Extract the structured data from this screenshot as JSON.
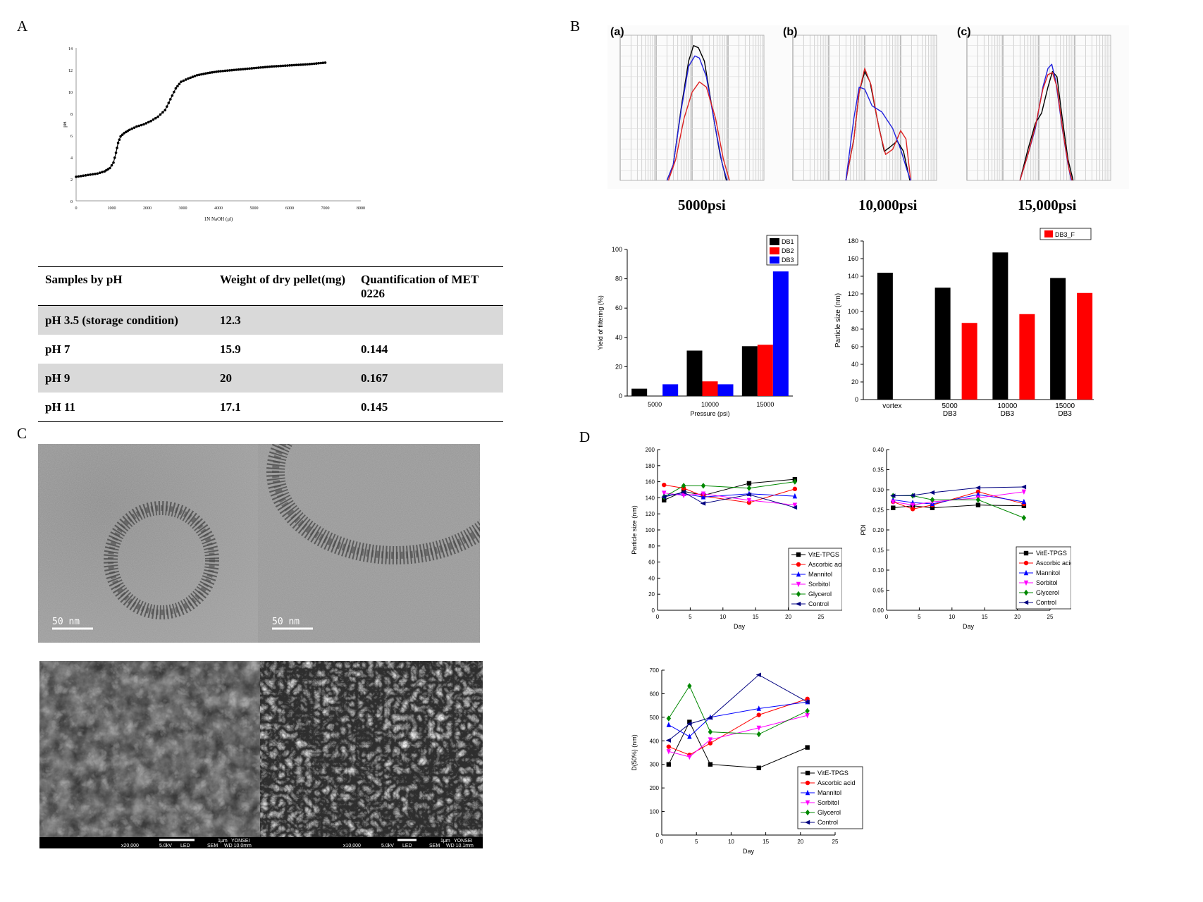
{
  "panels": {
    "a": "A",
    "b": "B",
    "c": "C",
    "d": "D"
  },
  "chart_data": [
    {
      "id": "titration",
      "type": "line",
      "xlabel": "1N NaOH (μl)",
      "ylabel": "pH",
      "xlim": [
        0,
        8000
      ],
      "ylim": [
        0,
        14
      ],
      "xticks": [
        "0",
        "1000",
        "2000",
        "3000",
        "4000",
        "5000",
        "6000",
        "7000",
        "8000"
      ],
      "yticks": [
        "0",
        "2",
        "4",
        "6",
        "8",
        "10",
        "12",
        "14"
      ],
      "points": [
        [
          0,
          2.2
        ],
        [
          200,
          2.3
        ],
        [
          400,
          2.4
        ],
        [
          600,
          2.5
        ],
        [
          800,
          2.7
        ],
        [
          950,
          3.0
        ],
        [
          1050,
          3.5
        ],
        [
          1120,
          4.4
        ],
        [
          1180,
          5.3
        ],
        [
          1250,
          5.9
        ],
        [
          1350,
          6.2
        ],
        [
          1500,
          6.5
        ],
        [
          1700,
          6.8
        ],
        [
          1900,
          7.0
        ],
        [
          2100,
          7.3
        ],
        [
          2300,
          7.7
        ],
        [
          2500,
          8.3
        ],
        [
          2650,
          9.3
        ],
        [
          2800,
          10.3
        ],
        [
          2950,
          10.9
        ],
        [
          3150,
          11.2
        ],
        [
          3400,
          11.5
        ],
        [
          3700,
          11.7
        ],
        [
          4000,
          11.85
        ],
        [
          4500,
          12.0
        ],
        [
          5000,
          12.15
        ],
        [
          5500,
          12.3
        ],
        [
          6000,
          12.4
        ],
        [
          6500,
          12.5
        ],
        [
          7000,
          12.65
        ]
      ]
    },
    {
      "id": "dls",
      "type": "line",
      "subplots": [
        {
          "label": "(a)",
          "pressure": "5000psi",
          "series": [
            {
              "color": "#000000",
              "points": [
                [
                  20,
                  0
                ],
                [
                  30,
                  15
                ],
                [
                  50,
                  70
                ],
                [
                  80,
                  115
                ],
                [
                  110,
                  130
                ],
                [
                  150,
                  128
                ],
                [
                  220,
                  115
                ],
                [
                  400,
                  60
                ],
                [
                  600,
                  25
                ],
                [
                  900,
                  0
                ]
              ]
            },
            {
              "color": "#2222dd",
              "points": [
                [
                  20,
                  0
                ],
                [
                  30,
                  15
                ],
                [
                  50,
                  68
                ],
                [
                  80,
                  110
                ],
                [
                  120,
                  120
                ],
                [
                  160,
                  118
                ],
                [
                  250,
                  100
                ],
                [
                  450,
                  50
                ],
                [
                  700,
                  15
                ],
                [
                  950,
                  0
                ]
              ]
            },
            {
              "color": "#dd2222",
              "points": [
                [
                  22,
                  0
                ],
                [
                  35,
                  20
                ],
                [
                  60,
                  60
                ],
                [
                  100,
                  85
                ],
                [
                  160,
                  95
                ],
                [
                  250,
                  90
                ],
                [
                  450,
                  60
                ],
                [
                  750,
                  20
                ],
                [
                  1100,
                  0
                ]
              ]
            }
          ]
        },
        {
          "label": "(b)",
          "pressure": "10,000psi",
          "series": [
            {
              "color": "#000000",
              "points": [
                [
                  30,
                  0
                ],
                [
                  50,
                  40
                ],
                [
                  70,
                  85
                ],
                [
                  100,
                  105
                ],
                [
                  140,
                  95
                ],
                [
                  220,
                  60
                ],
                [
                  350,
                  28
                ],
                [
                  500,
                  32
                ],
                [
                  800,
                  38
                ],
                [
                  1200,
                  28
                ],
                [
                  1800,
                  0
                ]
              ]
            },
            {
              "color": "#dd2222",
              "points": [
                [
                  30,
                  0
                ],
                [
                  50,
                  40
                ],
                [
                  70,
                  85
                ],
                [
                  100,
                  108
                ],
                [
                  150,
                  92
                ],
                [
                  250,
                  50
                ],
                [
                  380,
                  25
                ],
                [
                  600,
                  30
                ],
                [
                  1000,
                  48
                ],
                [
                  1400,
                  40
                ],
                [
                  1900,
                  0
                ]
              ]
            },
            {
              "color": "#2222dd",
              "points": [
                [
                  30,
                  0
                ],
                [
                  50,
                  60
                ],
                [
                  70,
                  90
                ],
                [
                  100,
                  88
                ],
                [
                  160,
                  72
                ],
                [
                  300,
                  66
                ],
                [
                  600,
                  50
                ],
                [
                  1000,
                  30
                ],
                [
                  1500,
                  10
                ],
                [
                  1900,
                  0
                ]
              ]
            }
          ]
        },
        {
          "label": "(c)",
          "pressure": "15,000psi",
          "series": [
            {
              "color": "#000000",
              "points": [
                [
                  30,
                  0
                ],
                [
                  50,
                  30
                ],
                [
                  80,
                  55
                ],
                [
                  120,
                  65
                ],
                [
                  180,
                  90
                ],
                [
                  240,
                  105
                ],
                [
                  320,
                  100
                ],
                [
                  450,
                  60
                ],
                [
                  650,
                  20
                ],
                [
                  900,
                  0
                ]
              ]
            },
            {
              "color": "#2222dd",
              "points": [
                [
                  30,
                  0
                ],
                [
                  50,
                  25
                ],
                [
                  80,
                  50
                ],
                [
                  130,
                  90
                ],
                [
                  180,
                  108
                ],
                [
                  230,
                  112
                ],
                [
                  300,
                  95
                ],
                [
                  450,
                  50
                ],
                [
                  650,
                  15
                ],
                [
                  800,
                  0
                ]
              ]
            },
            {
              "color": "#dd2222",
              "points": [
                [
                  30,
                  0
                ],
                [
                  50,
                  25
                ],
                [
                  80,
                  52
                ],
                [
                  130,
                  88
                ],
                [
                  180,
                  102
                ],
                [
                  240,
                  104
                ],
                [
                  320,
                  90
                ],
                [
                  480,
                  45
                ],
                [
                  700,
                  10
                ],
                [
                  850,
                  0
                ]
              ]
            }
          ]
        }
      ]
    },
    {
      "id": "filter-yield",
      "type": "bar",
      "categories": [
        "5000",
        "10000",
        "15000"
      ],
      "series": [
        {
          "name": "DB1",
          "color": "#000000",
          "values": [
            5,
            31,
            34
          ]
        },
        {
          "name": "DB2",
          "color": "#ff0000",
          "values": [
            0,
            10,
            35
          ]
        },
        {
          "name": "DB3",
          "color": "#0000ff",
          "values": [
            8,
            8,
            85
          ]
        }
      ],
      "xlabel": "Pressure (psi)",
      "ylabel": "Yield of filtering (%)",
      "ylim": [
        0,
        100
      ],
      "yticks": [
        "0",
        "20",
        "40",
        "60",
        "80",
        "100"
      ],
      "legend": "top-right"
    },
    {
      "id": "particle-size-bar",
      "type": "bar",
      "categories": [
        "vortex",
        "5000 DB3",
        "10000 DB3",
        "15000 DB3"
      ],
      "category_lines": [
        [
          "vortex"
        ],
        [
          "5000",
          "DB3"
        ],
        [
          "10000",
          "DB3"
        ],
        [
          "15000",
          "DB3"
        ]
      ],
      "series": [
        {
          "name": "",
          "color": "#000000",
          "values": [
            144,
            127,
            167,
            138
          ]
        },
        {
          "name": "DB3_F",
          "color": "#ff0000",
          "values": [
            0,
            87,
            97,
            121
          ]
        }
      ],
      "ylabel": "Particle size (nm)",
      "ylim": [
        0,
        180
      ],
      "yticks": [
        "0",
        "20",
        "40",
        "60",
        "80",
        "100",
        "120",
        "140",
        "160",
        "180"
      ],
      "legend": "top-right"
    },
    {
      "id": "stability-size",
      "type": "line",
      "xlabel": "Day",
      "ylabel": "Particle size (nm)",
      "xlim": [
        0,
        25
      ],
      "ylim": [
        0,
        200
      ],
      "xticks": [
        "0",
        "5",
        "10",
        "15",
        "20",
        "25"
      ],
      "yticks": [
        "0",
        "20",
        "40",
        "60",
        "80",
        "100",
        "120",
        "140",
        "160",
        "180",
        "200"
      ],
      "days": [
        1,
        4,
        7,
        14,
        21
      ],
      "series": [
        {
          "name": "VitE-TPGS",
          "color": "#000000",
          "marker": "square",
          "values": [
            137,
            148,
            143,
            158,
            163
          ]
        },
        {
          "name": "Ascorbic acid",
          "color": "#ff0000",
          "marker": "circle",
          "values": [
            156,
            152,
            142,
            134,
            151
          ]
        },
        {
          "name": "Mannitol",
          "color": "#0000ff",
          "marker": "triangle-up",
          "values": [
            143,
            145,
            141,
            145,
            142
          ]
        },
        {
          "name": "Sorbitol",
          "color": "#ff00ff",
          "marker": "triangle-down",
          "values": [
            146,
            143,
            145,
            137,
            131
          ]
        },
        {
          "name": "Glycerol",
          "color": "#008800",
          "marker": "diamond",
          "values": [
            141,
            155,
            155,
            152,
            160
          ]
        },
        {
          "name": "Control",
          "color": "#000080",
          "marker": "triangle-left",
          "values": [
            141,
            147,
            133,
            144,
            128
          ]
        }
      ],
      "legend": "bottom-right"
    },
    {
      "id": "stability-pdi",
      "type": "line",
      "xlabel": "Day",
      "ylabel": "PDI",
      "xlim": [
        0,
        25
      ],
      "ylim": [
        0,
        0.4
      ],
      "xticks": [
        "0",
        "5",
        "10",
        "15",
        "20",
        "25"
      ],
      "yticks": [
        "0.00",
        "0.05",
        "0.10",
        "0.15",
        "0.20",
        "0.25",
        "0.30",
        "0.35",
        "0.40"
      ],
      "days": [
        1,
        4,
        7,
        14,
        21
      ],
      "series": [
        {
          "name": "VitE-TPGS",
          "color": "#000000",
          "marker": "square",
          "values": [
            0.255,
            0.26,
            0.255,
            0.262,
            0.26
          ]
        },
        {
          "name": "Ascorbic acid",
          "color": "#ff0000",
          "marker": "circle",
          "values": [
            0.27,
            0.252,
            0.262,
            0.295,
            0.265
          ]
        },
        {
          "name": "Mannitol",
          "color": "#0000ff",
          "marker": "triangle-up",
          "values": [
            0.275,
            0.268,
            0.265,
            0.288,
            0.27
          ]
        },
        {
          "name": "Sorbitol",
          "color": "#ff00ff",
          "marker": "triangle-down",
          "values": [
            0.27,
            0.262,
            0.27,
            0.28,
            0.295
          ]
        },
        {
          "name": "Glycerol",
          "color": "#008800",
          "marker": "diamond",
          "values": [
            0.285,
            0.285,
            0.275,
            0.275,
            0.23
          ]
        },
        {
          "name": "Control",
          "color": "#000080",
          "marker": "triangle-left",
          "values": [
            0.285,
            0.286,
            0.293,
            0.305,
            0.307
          ]
        }
      ],
      "legend": "bottom-right"
    },
    {
      "id": "stability-d50",
      "type": "line",
      "xlabel": "Day",
      "ylabel": "D(50%) (nm)",
      "xlim": [
        0,
        25
      ],
      "ylim": [
        0,
        700
      ],
      "xticks": [
        "0",
        "5",
        "10",
        "15",
        "20",
        "25"
      ],
      "yticks": [
        "0",
        "100",
        "200",
        "300",
        "400",
        "500",
        "600",
        "700"
      ],
      "days": [
        1,
        4,
        7,
        14,
        21
      ],
      "series": [
        {
          "name": "VitE-TPGS",
          "color": "#000000",
          "marker": "square",
          "values": [
            300,
            480,
            300,
            285,
            372
          ]
        },
        {
          "name": "Ascorbic acid",
          "color": "#ff0000",
          "marker": "circle",
          "values": [
            375,
            340,
            390,
            510,
            578
          ]
        },
        {
          "name": "Mannitol",
          "color": "#0000ff",
          "marker": "triangle-up",
          "values": [
            468,
            418,
            500,
            537,
            565
          ]
        },
        {
          "name": "Sorbitol",
          "color": "#ff00ff",
          "marker": "triangle-down",
          "values": [
            355,
            332,
            405,
            455,
            508
          ]
        },
        {
          "name": "Glycerol",
          "color": "#008800",
          "marker": "diamond",
          "values": [
            495,
            633,
            438,
            428,
            527
          ]
        },
        {
          "name": "Control",
          "color": "#000080",
          "marker": "triangle-left",
          "values": [
            402,
            472,
            498,
            680,
            565
          ]
        }
      ],
      "legend": "bottom-right"
    }
  ],
  "table": {
    "headers": [
      "Samples by pH",
      "Weight of dry pellet(mg)",
      "Quantification of MET 0226"
    ],
    "rows": [
      [
        "pH 3.5 (storage condition)",
        "12.3",
        ""
      ],
      [
        "pH 7",
        "15.9",
        "0.144"
      ],
      [
        "pH 9",
        "20",
        "0.167"
      ],
      [
        "pH 11",
        "17.1",
        "0.145"
      ]
    ]
  },
  "tem": {
    "scale_left": "50  nm",
    "scale_right": "50  nm"
  },
  "sem": {
    "left": {
      "scale": "1μm",
      "site": "YONSEI",
      "mag": "x20,000",
      "kv": "5.0kV",
      "det": "LED",
      "mode": "SEM",
      "wd": "WD 10.0mm"
    },
    "right": {
      "scale": "1μm",
      "site": "YONSEI",
      "mag": "x10,000",
      "kv": "5.0kV",
      "det": "LED",
      "mode": "SEM",
      "wd": "WD 10.1mm"
    }
  }
}
